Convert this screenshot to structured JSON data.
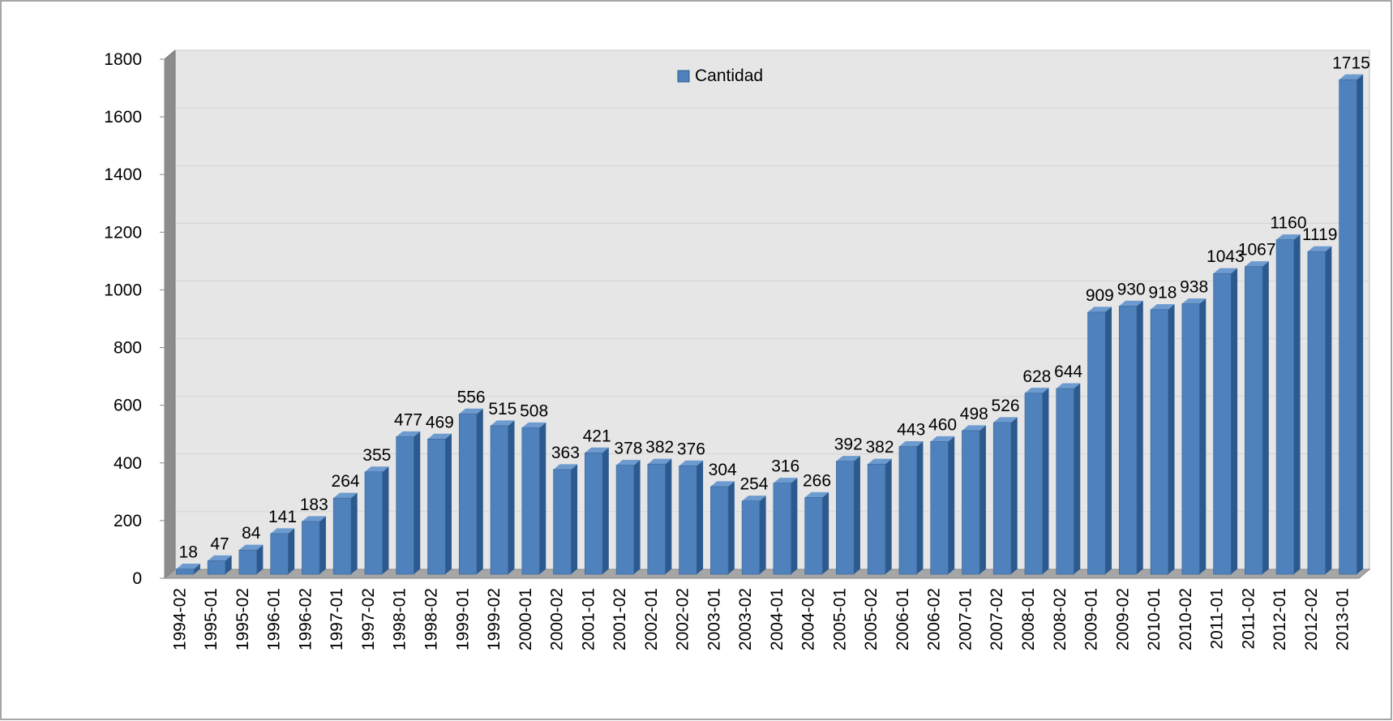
{
  "chart_data": {
    "type": "bar3d",
    "categories": [
      "1994-02",
      "1995-01",
      "1995-02",
      "1996-01",
      "1996-02",
      "1997-01",
      "1997-02",
      "1998-01",
      "1998-02",
      "1999-01",
      "1999-02",
      "2000-01",
      "2000-02",
      "2001-01",
      "2001-02",
      "2002-01",
      "2002-02",
      "2003-01",
      "2003-02",
      "2004-01",
      "2004-02",
      "2005-01",
      "2005-02",
      "2006-01",
      "2006-02",
      "2007-01",
      "2007-02",
      "2008-01",
      "2008-02",
      "2009-01",
      "2009-02",
      "2010-01",
      "2010-02",
      "2011-01",
      "2011-02",
      "2012-01",
      "2012-02",
      "2013-01"
    ],
    "series": [
      {
        "name": "Cantidad",
        "color": "#4f81bd",
        "values": [
          18,
          47,
          84,
          141,
          183,
          264,
          355,
          477,
          469,
          556,
          515,
          508,
          363,
          421,
          378,
          382,
          376,
          304,
          254,
          316,
          266,
          392,
          382,
          443,
          460,
          498,
          526,
          628,
          644,
          909,
          930,
          918,
          938,
          1043,
          1067,
          1160,
          1119,
          1715
        ]
      }
    ],
    "ylim": [
      0,
      1800
    ],
    "yticks": [
      0,
      200,
      400,
      600,
      800,
      1000,
      1200,
      1400,
      1600,
      1800
    ],
    "legend": "top",
    "data_labels": true
  }
}
